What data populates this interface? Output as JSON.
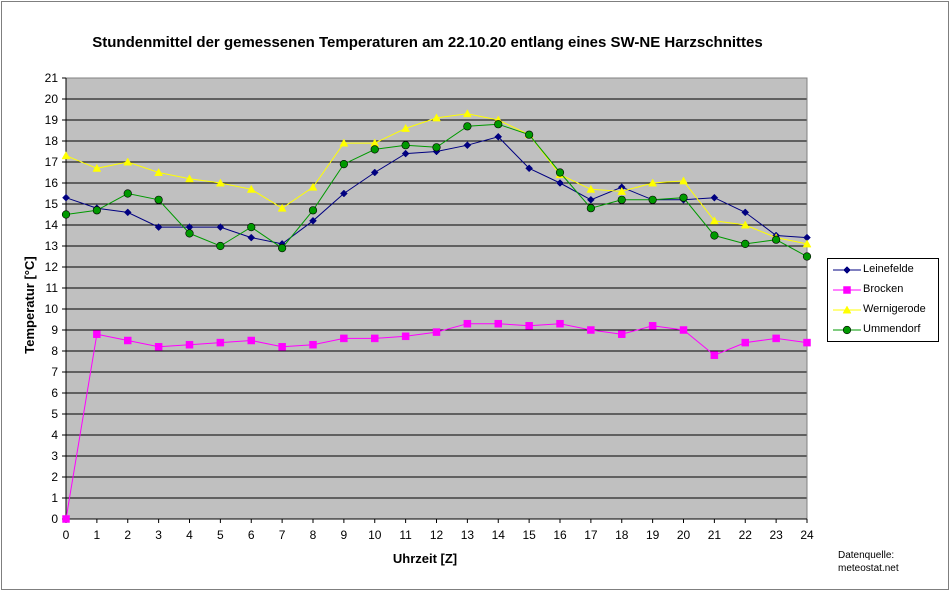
{
  "chart_data": {
    "type": "line",
    "title": "Stundenmittel der gemessenen Temperaturen am 22.10.20 entlang eines SW-NE Harzschnittes",
    "xlabel": "Uhrzeit [Z]",
    "ylabel": "Temperatur [°C]",
    "x": [
      0,
      1,
      2,
      3,
      4,
      5,
      6,
      7,
      8,
      9,
      10,
      11,
      12,
      13,
      14,
      15,
      16,
      17,
      18,
      19,
      20,
      21,
      22,
      23,
      24
    ],
    "xlim": [
      0,
      24
    ],
    "ylim": [
      0,
      21
    ],
    "y_ticks": [
      "0",
      "1",
      "2",
      "3",
      "4",
      "5",
      "6",
      "7",
      "8",
      "9",
      "10",
      "11",
      "12",
      "13",
      "14",
      "15",
      "16",
      "17",
      "18",
      "19",
      "20",
      "21"
    ],
    "x_ticks": [
      "0",
      "1",
      "2",
      "3",
      "4",
      "5",
      "6",
      "7",
      "8",
      "9",
      "10",
      "11",
      "12",
      "13",
      "14",
      "15",
      "16",
      "17",
      "18",
      "19",
      "20",
      "21",
      "22",
      "23",
      "24"
    ],
    "grid": true,
    "legend_position": "right",
    "background": "#c0c0c0",
    "series": [
      {
        "name": "Leinefelde",
        "color": "#000080",
        "marker": "diamond",
        "values": [
          15.3,
          14.8,
          14.6,
          13.9,
          13.9,
          13.9,
          13.4,
          13.1,
          14.2,
          15.5,
          16.5,
          17.4,
          17.5,
          17.8,
          18.2,
          16.7,
          16.0,
          15.2,
          15.8,
          15.2,
          15.2,
          15.3,
          14.6,
          13.5,
          13.4
        ]
      },
      {
        "name": "Brocken",
        "color": "#ff00ff",
        "marker": "square",
        "values": [
          0.0,
          8.8,
          8.5,
          8.2,
          8.3,
          8.4,
          8.5,
          8.2,
          8.3,
          8.6,
          8.6,
          8.7,
          8.9,
          9.3,
          9.3,
          9.2,
          9.3,
          9.0,
          8.8,
          9.2,
          9.0,
          7.8,
          8.4,
          8.6,
          8.4
        ]
      },
      {
        "name": "Wernigerode",
        "color": "#ffff00",
        "marker": "triangle",
        "values": [
          17.3,
          16.7,
          17.0,
          16.5,
          16.2,
          16.0,
          15.7,
          14.8,
          15.8,
          17.9,
          17.9,
          18.6,
          19.1,
          19.3,
          19.0,
          18.3,
          16.4,
          15.7,
          15.6,
          16.0,
          16.1,
          14.2,
          14.0,
          13.4,
          13.1
        ]
      },
      {
        "name": "Ummendorf",
        "color": "#009900",
        "marker": "circle",
        "values": [
          14.5,
          14.7,
          15.5,
          15.2,
          13.6,
          13.0,
          13.9,
          12.9,
          14.7,
          16.9,
          17.6,
          17.8,
          17.7,
          18.7,
          18.8,
          18.3,
          16.5,
          14.8,
          15.2,
          15.2,
          15.3,
          13.5,
          13.1,
          13.3,
          12.5
        ]
      }
    ],
    "source": [
      "Datenquelle:",
      "meteostat.net"
    ]
  }
}
